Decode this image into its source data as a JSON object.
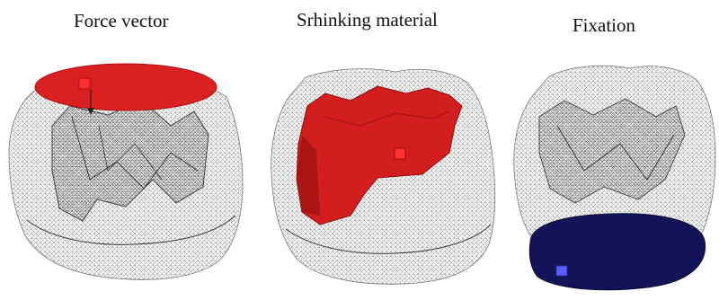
{
  "panels": [
    {
      "label": "Force vector",
      "region_color": "#e02222"
    },
    {
      "label": "Srhinking material",
      "region_color": "#d91f1f"
    },
    {
      "label": "Fixation",
      "region_color": "#111155"
    }
  ],
  "marker_colors": {
    "force": "#ff3030",
    "shrink": "#ff3030",
    "fixation": "#5a5aff"
  },
  "mesh_color": "#555555"
}
